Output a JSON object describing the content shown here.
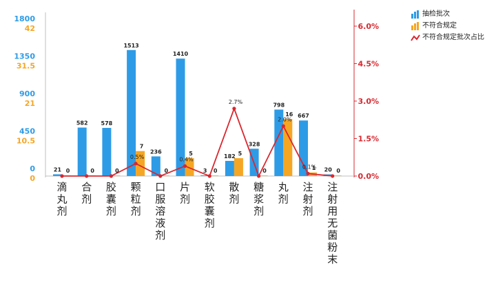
{
  "chart_data": {
    "type": "bar+line",
    "title": "",
    "categories": [
      "滴丸剂",
      "合剂",
      "胶囊剂",
      "颗粒剂",
      "口服溶液剂",
      "片剂",
      "软胶囊剂",
      "散剂",
      "糖浆剂",
      "丸剂",
      "注射剂",
      "注射用无菌粉末"
    ],
    "series": [
      {
        "name": "抽检批次",
        "type": "bar",
        "axis": "left-blue",
        "color": "#2e9be6",
        "values": [
          21,
          582,
          578,
          1513,
          236,
          1410,
          3,
          182,
          328,
          798,
          667,
          20
        ]
      },
      {
        "name": "不符合规定",
        "type": "bar",
        "axis": "left-orange",
        "color": "#f5a623",
        "values": [
          0,
          0,
          0,
          7,
          0,
          5,
          0,
          5,
          0,
          16,
          1,
          0
        ]
      },
      {
        "name": "不符合规定批次占比",
        "type": "line",
        "axis": "right",
        "color": "#d9272e",
        "values": [
          0.0,
          0.0,
          0.0,
          0.5,
          0.0,
          0.4,
          0.0,
          2.7,
          0.0,
          2.0,
          0.1,
          0.0
        ],
        "labels": [
          "",
          "",
          "",
          "0.5%",
          "",
          "0.4%",
          "",
          "2.7%",
          "",
          "2.0%",
          "0.1%",
          ""
        ]
      }
    ],
    "y_axis_blue": {
      "ticks": [
        "0",
        "450",
        "900",
        "1350",
        "1800"
      ],
      "range": [
        0,
        1800
      ],
      "color": "#2e9be6"
    },
    "y_axis_orange": {
      "ticks": [
        "0",
        "10.5",
        "21",
        "31.5",
        "42"
      ],
      "range": [
        0,
        42
      ],
      "color": "#f5a623"
    },
    "y_axis_right": {
      "ticks": [
        "0.0%",
        "1.5%",
        "3.0%",
        "4.5%",
        "6.0%"
      ],
      "range": [
        0,
        6
      ],
      "color": "#d9272e"
    },
    "legend_position": "top-right",
    "grid": false
  },
  "legend": [
    {
      "label": "抽检批次",
      "color": "#2e9be6"
    },
    {
      "label": "不符合规定",
      "color": "#f5a623"
    },
    {
      "label": "不符合规定批次占比",
      "color": "#d9272e"
    }
  ]
}
